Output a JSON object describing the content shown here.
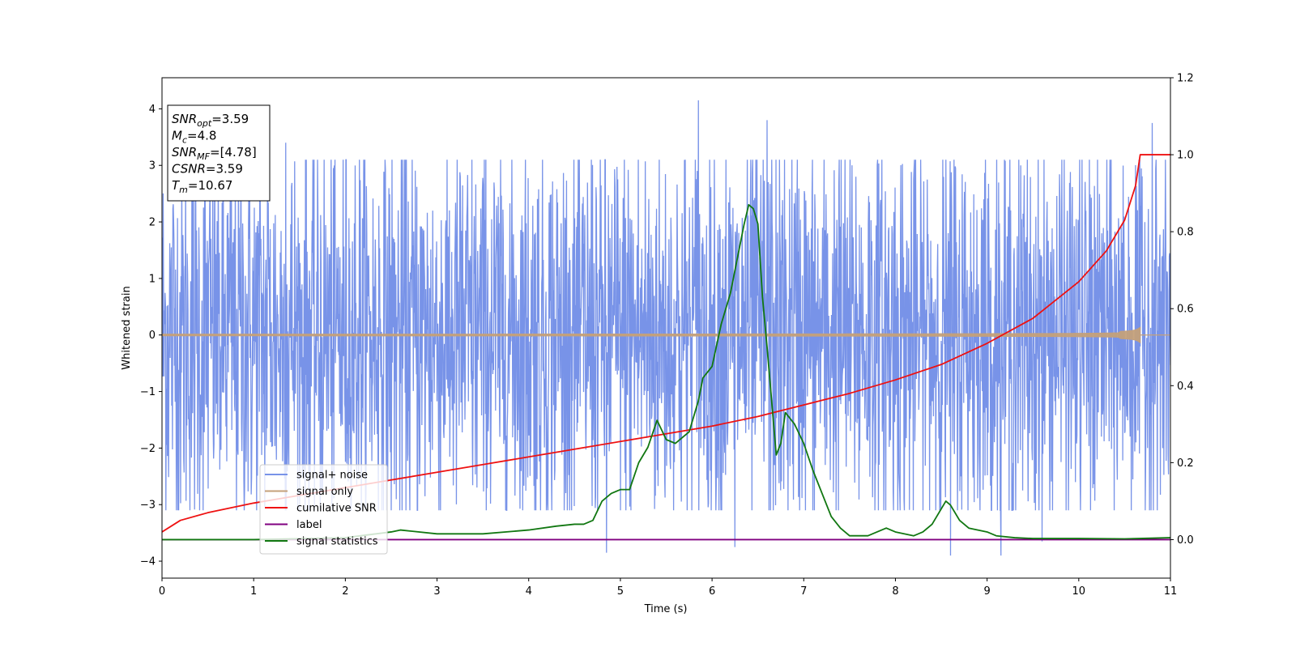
{
  "chart_data": {
    "type": "line",
    "title": "",
    "xlabel": "Time (s)",
    "ylabel": "Whitened strain",
    "x_range": [
      0,
      11
    ],
    "y_left_range": [
      -4.3,
      4.55
    ],
    "y_right_range": [
      -0.1,
      1.2
    ],
    "x_ticks": [
      0,
      1,
      2,
      3,
      4,
      5,
      6,
      7,
      8,
      9,
      10,
      11
    ],
    "y_left_ticks": [
      -4,
      -3,
      -2,
      -1,
      0,
      1,
      2,
      3,
      4
    ],
    "y_left_tick_labels": [
      "−4",
      "−3",
      "−2",
      "−1",
      "0",
      "1",
      "2",
      "3",
      "4"
    ],
    "y_right_ticks": [
      0.0,
      0.2,
      0.4,
      0.6,
      0.8,
      1.0,
      1.2
    ],
    "y_right_tick_labels": [
      "0.0",
      "0.2",
      "0.4",
      "0.6",
      "0.8",
      "1.0",
      "1.2"
    ],
    "grid": false,
    "legend_position": "lower-left",
    "info_box": {
      "lines": [
        {
          "main": "SNR",
          "sub": "opt",
          "rest": "=3.59"
        },
        {
          "main": "M",
          "sub": "c",
          "rest": "=4.8"
        },
        {
          "main": "SNR",
          "sub": "MF",
          "rest": "=[4.78]"
        },
        {
          "main": "CSNR",
          "sub": "",
          "rest": "=3.59"
        },
        {
          "main": "T",
          "sub": "m",
          "rest": "=10.67"
        }
      ]
    },
    "series": [
      {
        "name": "signal+ noise",
        "color": "#7893e8",
        "axis": "left",
        "kind": "noise",
        "typical_range": [
          -2.5,
          2.5
        ],
        "extremes": [
          [
            1.15,
            3.4
          ],
          [
            5.85,
            4.15
          ],
          [
            6.25,
            -3.75
          ],
          [
            6.6,
            3.8
          ],
          [
            8.6,
            -3.9
          ],
          [
            9.15,
            -3.9
          ],
          [
            10.8,
            3.75
          ],
          [
            4.85,
            -3.85
          ],
          [
            1.35,
            3.4
          ],
          [
            9.6,
            -3.65
          ]
        ]
      },
      {
        "name": "signal only",
        "color": "#c4a07a",
        "axis": "left",
        "kind": "chirp",
        "t_merge": 10.67,
        "amp_start": 0.015,
        "amp_end": 0.35
      },
      {
        "name": "cumilative SNR",
        "color": "#ee1111",
        "axis": "right",
        "kind": "line",
        "x": [
          0,
          0.2,
          0.5,
          1,
          1.5,
          2,
          2.5,
          3,
          3.5,
          4,
          4.5,
          5,
          5.5,
          6,
          6.5,
          7,
          7.5,
          8,
          8.5,
          9,
          9.5,
          10,
          10.3,
          10.5,
          10.62,
          10.67,
          11
        ],
        "y": [
          0.02,
          0.05,
          0.07,
          0.095,
          0.115,
          0.135,
          0.155,
          0.175,
          0.195,
          0.215,
          0.235,
          0.255,
          0.275,
          0.295,
          0.32,
          0.35,
          0.38,
          0.415,
          0.455,
          0.51,
          0.575,
          0.67,
          0.75,
          0.83,
          0.92,
          1.0,
          1.0
        ]
      },
      {
        "name": "label",
        "color": "#800080",
        "axis": "right",
        "kind": "line",
        "x": [
          0,
          11
        ],
        "y": [
          0.0,
          0.0
        ]
      },
      {
        "name": "signal statistics",
        "color": "#117711",
        "axis": "right",
        "kind": "line",
        "x": [
          0,
          1,
          2,
          2.5,
          2.6,
          3,
          3.5,
          4,
          4.3,
          4.5,
          4.6,
          4.7,
          4.8,
          4.9,
          5.0,
          5.1,
          5.2,
          5.3,
          5.4,
          5.5,
          5.6,
          5.7,
          5.75,
          5.85,
          5.9,
          6.0,
          6.1,
          6.2,
          6.3,
          6.35,
          6.4,
          6.45,
          6.5,
          6.55,
          6.6,
          6.7,
          6.75,
          6.8,
          6.9,
          7.0,
          7.1,
          7.2,
          7.3,
          7.4,
          7.5,
          7.7,
          7.8,
          7.9,
          8.0,
          8.2,
          8.3,
          8.4,
          8.45,
          8.5,
          8.55,
          8.6,
          8.7,
          8.8,
          9.0,
          9.1,
          9.3,
          9.5,
          10.0,
          10.5,
          11.0
        ],
        "y": [
          0.0,
          0.0,
          0.005,
          0.02,
          0.025,
          0.015,
          0.015,
          0.025,
          0.035,
          0.04,
          0.04,
          0.05,
          0.1,
          0.12,
          0.13,
          0.13,
          0.2,
          0.24,
          0.31,
          0.26,
          0.25,
          0.27,
          0.28,
          0.36,
          0.42,
          0.45,
          0.56,
          0.64,
          0.76,
          0.82,
          0.87,
          0.86,
          0.82,
          0.63,
          0.5,
          0.22,
          0.25,
          0.33,
          0.3,
          0.25,
          0.18,
          0.12,
          0.06,
          0.03,
          0.01,
          0.01,
          0.02,
          0.03,
          0.02,
          0.01,
          0.02,
          0.04,
          0.06,
          0.08,
          0.1,
          0.09,
          0.05,
          0.03,
          0.02,
          0.01,
          0.005,
          0.003,
          0.003,
          0.002,
          0.005
        ]
      }
    ]
  }
}
